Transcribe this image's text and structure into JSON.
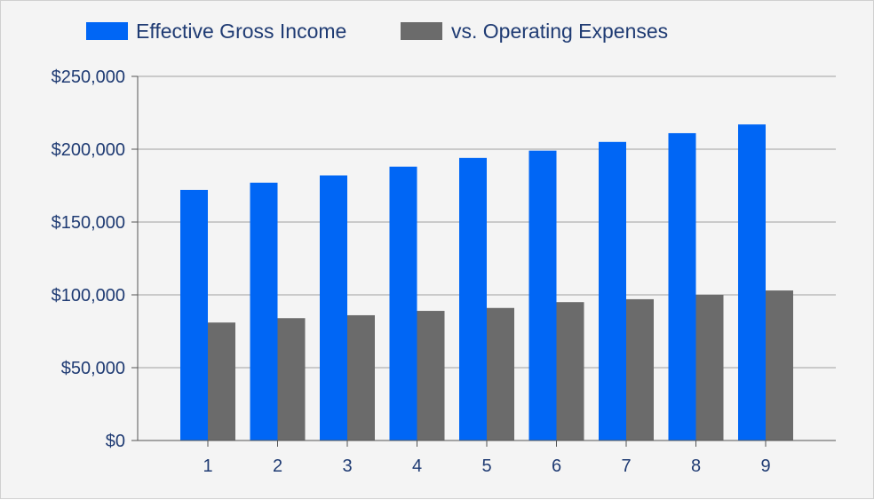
{
  "chart_data": {
    "type": "bar",
    "categories": [
      "1",
      "2",
      "3",
      "4",
      "5",
      "6",
      "7",
      "8",
      "9"
    ],
    "series": [
      {
        "name": "Effective Gross Income",
        "color": "#0066f5",
        "values": [
          172000,
          177000,
          182000,
          188000,
          194000,
          199000,
          205000,
          211000,
          217000
        ]
      },
      {
        "name": "vs. Operating Expenses",
        "color": "#6b6b6b",
        "values": [
          81000,
          84000,
          86000,
          89000,
          91000,
          95000,
          97000,
          100000,
          103000
        ]
      }
    ],
    "y_ticks": [
      "$0",
      "$50,000",
      "$100,000",
      "$150,000",
      "$200,000",
      "$250,000"
    ],
    "ylim": [
      0,
      250000
    ],
    "y_tick_step": 50000,
    "grid": true,
    "legend_position": "top-left",
    "background_color": "#f4f4f4",
    "axis_text_color": "#1f3b73",
    "gridline_color": "#a0a0a0"
  }
}
